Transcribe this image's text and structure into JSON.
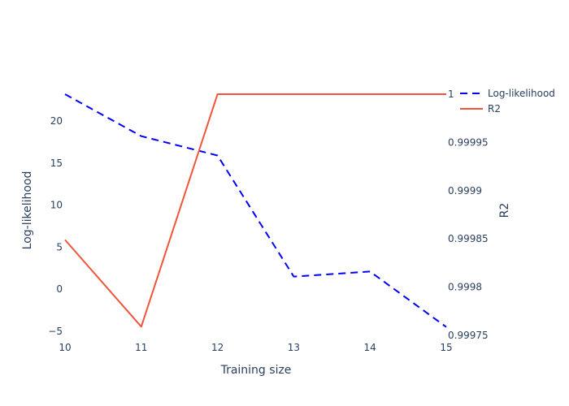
{
  "chart_data": {
    "type": "line",
    "x": [
      10,
      11,
      12,
      13,
      14,
      15
    ],
    "xlabel": "Training size",
    "xlim": [
      10,
      15
    ],
    "xticks": [
      "10",
      "11",
      "12",
      "13",
      "14",
      "15"
    ],
    "series": [
      {
        "name": "Log-likelihood",
        "axis": "y",
        "values": [
          23.2,
          18.2,
          15.9,
          1.5,
          2.1,
          -4.5
        ],
        "color": "#0000ff",
        "dash": "dash"
      },
      {
        "name": "R2",
        "axis": "y2",
        "values": [
          0.999849,
          0.999759,
          1.0,
          1.0,
          1.0,
          1.0
        ],
        "color": "#ef553b",
        "dash": "solid"
      }
    ],
    "y": {
      "label": "Log-likelihood",
      "range": [
        -5.5,
        23.2
      ],
      "ticks": [
        -5,
        0,
        5,
        10,
        15,
        20
      ],
      "tick_labels": [
        "−5",
        "0",
        "5",
        "10",
        "15",
        "20"
      ]
    },
    "y2": {
      "label": "R2",
      "range": [
        0.99975,
        1.0
      ],
      "ticks": [
        0.99975,
        0.9998,
        0.99985,
        0.9999,
        0.99995,
        1.0
      ],
      "tick_labels": [
        "0.99975",
        "0.9998",
        "0.99985",
        "0.9999",
        "0.99995",
        "1"
      ]
    },
    "grid": false,
    "legend": {
      "placement": "top-right",
      "items": [
        "Log-likelihood",
        "R2"
      ]
    }
  }
}
